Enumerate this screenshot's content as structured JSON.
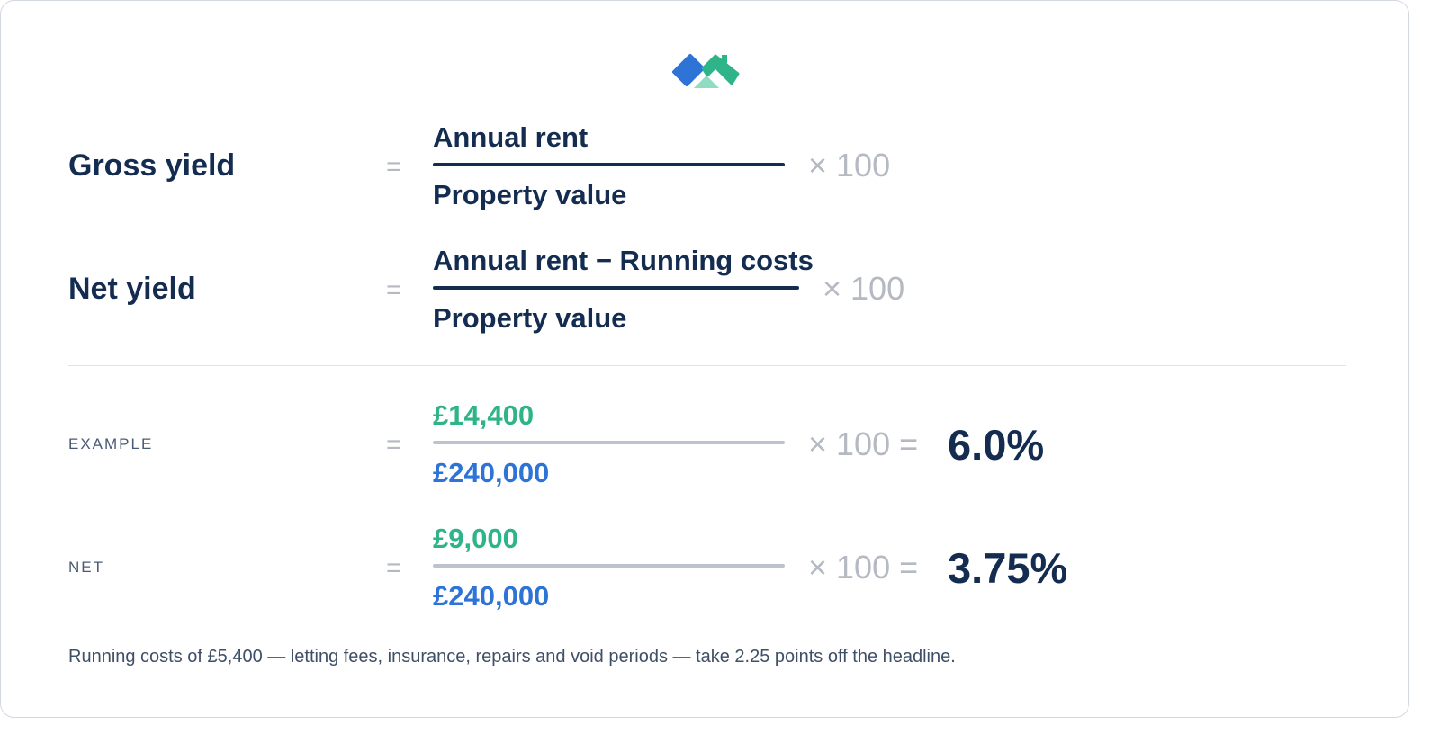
{
  "brand": {
    "logo_icon": "house-roof-logo-icon",
    "colors": {
      "blue": "#2e73d6",
      "green": "#2fb489",
      "mint": "#8fdcc0",
      "navy": "#132c50"
    }
  },
  "formulas": {
    "gross": {
      "label": "Gross yield",
      "equals": "=",
      "numerator": "Annual rent",
      "denominator": "Property value",
      "multiplier": "× 100"
    },
    "net": {
      "label": "Net yield",
      "equals": "=",
      "numerator": "Annual rent − Running costs",
      "denominator": "Property value",
      "multiplier": "× 100"
    }
  },
  "examples": {
    "example": {
      "label": "EXAMPLE",
      "equals": "=",
      "numerator": "£14,400",
      "denominator": "£240,000",
      "multiplier": "× 100 =",
      "result": "6.0%"
    },
    "net": {
      "label": "NET",
      "equals": "=",
      "numerator": "£9,000",
      "denominator": "£240,000",
      "multiplier": "× 100 =",
      "result": "3.75%"
    }
  },
  "footnote": "Running costs of £5,400 — letting fees, insurance, repairs and void periods — take 2.25 points off the headline."
}
